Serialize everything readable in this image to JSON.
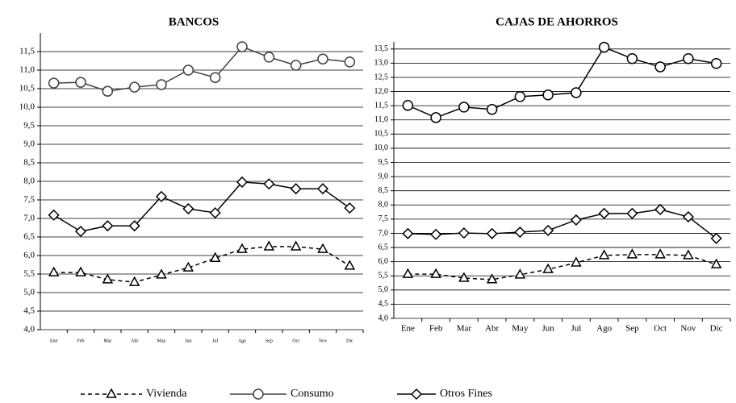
{
  "chart_data": [
    {
      "type": "line",
      "title": "BANCOS",
      "categories": [
        "Ene",
        "Feb",
        "Mar",
        "Abr",
        "May",
        "Jun",
        "Jul",
        "Ago",
        "Sep",
        "Oct",
        "Nov",
        "Dic"
      ],
      "ylim": [
        4,
        12
      ],
      "yticks": [
        {
          "value": 4,
          "label": "4,0"
        },
        {
          "value": 4.5,
          "label": "4,5"
        },
        {
          "value": 5,
          "label": "5,0"
        },
        {
          "value": 5.5,
          "label": "5,5"
        },
        {
          "value": 6,
          "label": "6,0"
        },
        {
          "value": 6.5,
          "label": "6,5"
        },
        {
          "value": 7,
          "label": "7,0"
        },
        {
          "value": 7.5,
          "label": "7,5"
        },
        {
          "value": 8,
          "label": "8,0"
        },
        {
          "value": 8.5,
          "label": "8,5"
        },
        {
          "value": 9,
          "label": "9,0"
        },
        {
          "value": 9.5,
          "label": "9,5"
        },
        {
          "value": 10,
          "label": "10,0"
        },
        {
          "value": 10.5,
          "label": "10,5"
        },
        {
          "value": 11,
          "label": "11,0"
        },
        {
          "value": 11.5,
          "label": "11,5"
        }
      ],
      "grid": true,
      "series": [
        {
          "name": "Vivienda",
          "color": "#000000",
          "line_style": "dashed",
          "marker": "triangle",
          "values": [
            5.54,
            5.54,
            5.35,
            5.28,
            5.48,
            5.67,
            5.93,
            6.17,
            6.24,
            6.24,
            6.17,
            5.72
          ]
        },
        {
          "name": "Consumo",
          "color": "#404040",
          "line_style": "solid",
          "marker": "circle",
          "values": [
            10.65,
            10.67,
            10.43,
            10.54,
            10.61,
            11.0,
            10.8,
            11.63,
            11.35,
            11.13,
            11.3,
            11.22
          ]
        },
        {
          "name": "Otros Fines",
          "color": "#000000",
          "line_style": "solid",
          "marker": "diamond",
          "values": [
            7.09,
            6.65,
            6.8,
            6.8,
            7.59,
            7.26,
            7.15,
            7.98,
            7.93,
            7.8,
            7.8,
            7.28
          ]
        }
      ]
    },
    {
      "type": "line",
      "title": "CAJAS DE AHORROS",
      "categories": [
        "Ene",
        "Feb",
        "Mar",
        "Abr",
        "May",
        "Jun",
        "Jul",
        "Ago",
        "Sep",
        "Oct",
        "Nov",
        "Dic"
      ],
      "ylim": [
        4,
        13.75
      ],
      "yticks": [
        {
          "value": 4,
          "label": "4,0"
        },
        {
          "value": 4.5,
          "label": "4,5"
        },
        {
          "value": 5,
          "label": "5,0"
        },
        {
          "value": 5.5,
          "label": "5,5"
        },
        {
          "value": 6,
          "label": "6,0"
        },
        {
          "value": 6.5,
          "label": "6,5"
        },
        {
          "value": 7,
          "label": "7,0"
        },
        {
          "value": 7.5,
          "label": "7,5"
        },
        {
          "value": 8,
          "label": "8,0"
        },
        {
          "value": 8.5,
          "label": "8,5"
        },
        {
          "value": 9,
          "label": "9,0"
        },
        {
          "value": 9.5,
          "label": "9,5"
        },
        {
          "value": 10,
          "label": "10,0"
        },
        {
          "value": 10.5,
          "label": "10,5"
        },
        {
          "value": 11,
          "label": "11,0"
        },
        {
          "value": 11.5,
          "label": "11,5"
        },
        {
          "value": 12,
          "label": "12,0"
        },
        {
          "value": 12.5,
          "label": "12,5"
        },
        {
          "value": 13,
          "label": "13,0"
        },
        {
          "value": 13.5,
          "label": "13,5"
        }
      ],
      "grid": true,
      "series": [
        {
          "name": "Vivienda",
          "color": "#000000",
          "line_style": "dashed",
          "marker": "triangle",
          "values": [
            5.56,
            5.56,
            5.42,
            5.37,
            5.54,
            5.73,
            5.96,
            6.22,
            6.25,
            6.25,
            6.22,
            5.9
          ]
        },
        {
          "name": "Consumo",
          "color": "#000000",
          "line_style": "solid",
          "marker": "circle",
          "values": [
            11.51,
            11.08,
            11.45,
            11.37,
            11.82,
            11.88,
            11.96,
            13.56,
            13.16,
            12.87,
            13.16,
            12.99
          ]
        },
        {
          "name": "Otros Fines",
          "color": "#000000",
          "line_style": "solid",
          "marker": "diamond",
          "values": [
            6.99,
            6.96,
            7.01,
            6.99,
            7.04,
            7.1,
            7.47,
            7.7,
            7.7,
            7.84,
            7.58,
            6.82
          ]
        }
      ]
    }
  ]
}
